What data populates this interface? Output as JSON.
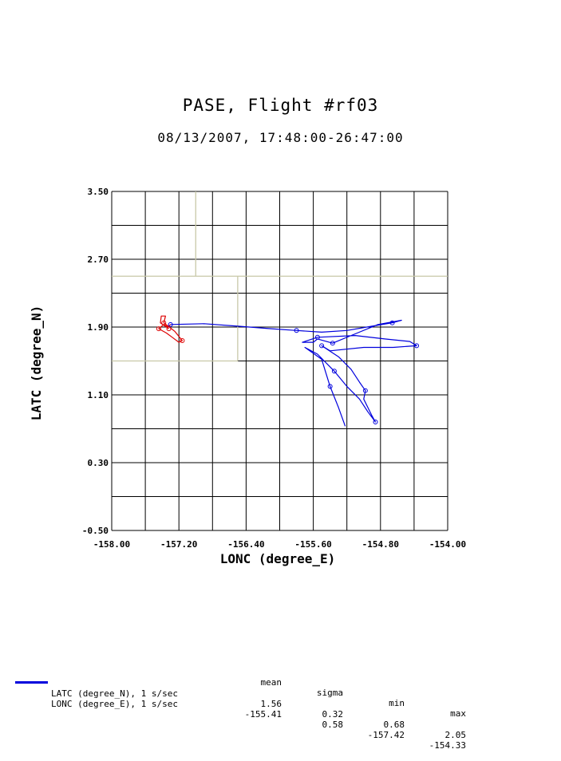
{
  "title": "PASE, Flight #rf03",
  "subtitle": "08/13/2007, 17:48:00-26:47:00",
  "colors": {
    "track": "#0000dd",
    "track_start": "#dd0000",
    "grid": "#000000",
    "map_lines": "#c8c8a8"
  },
  "chart_data": {
    "type": "line",
    "xlabel": "LONC (degree_E)",
    "ylabel": "LATC (degree_N)",
    "xlim": [
      -158.0,
      -154.0
    ],
    "ylim": [
      -0.5,
      3.5
    ],
    "xticks": [
      "-158.00",
      "-157.20",
      "-156.40",
      "-155.60",
      "-154.80",
      "-154.00"
    ],
    "yticks": [
      "-0.50",
      "0.30",
      "1.10",
      "1.90",
      "2.70",
      "3.50"
    ],
    "grid": true,
    "series": [
      {
        "name": "flight track",
        "segments": [
          {
            "color": "red",
            "points": [
              [
                -157.32,
                1.88
              ],
              [
                -157.42,
                1.95
              ],
              [
                -157.41,
                2.03
              ],
              [
                -157.36,
                2.03
              ],
              [
                -157.38,
                1.95
              ],
              [
                -157.3,
                1.89
              ],
              [
                -157.25,
                1.85
              ],
              [
                -157.2,
                1.79
              ],
              [
                -157.16,
                1.74
              ],
              [
                -157.2,
                1.72
              ],
              [
                -157.28,
                1.78
              ],
              [
                -157.35,
                1.83
              ],
              [
                -157.44,
                1.88
              ],
              [
                -157.38,
                1.93
              ],
              [
                -157.33,
                1.9
              ],
              [
                -157.3,
                1.93
              ]
            ]
          },
          {
            "color": "blue",
            "points": [
              [
                -157.3,
                1.93
              ],
              [
                -156.9,
                1.94
              ],
              [
                -156.5,
                1.91
              ],
              [
                -156.1,
                1.88
              ],
              [
                -155.8,
                1.86
              ],
              [
                -155.5,
                1.84
              ],
              [
                -155.2,
                1.86
              ],
              [
                -154.9,
                1.91
              ],
              [
                -154.66,
                1.95
              ],
              [
                -154.55,
                1.98
              ],
              [
                -154.83,
                1.93
              ],
              [
                -155.1,
                1.82
              ],
              [
                -155.37,
                1.71
              ],
              [
                -155.55,
                1.76
              ],
              [
                -155.6,
                1.72
              ],
              [
                -155.73,
                1.72
              ],
              [
                -155.55,
                1.78
              ],
              [
                -155.1,
                1.8
              ],
              [
                -154.75,
                1.76
              ],
              [
                -154.45,
                1.73
              ],
              [
                -154.37,
                1.68
              ],
              [
                -154.65,
                1.66
              ],
              [
                -155.0,
                1.66
              ],
              [
                -155.4,
                1.62
              ],
              [
                -155.5,
                1.68
              ],
              [
                -155.3,
                1.55
              ],
              [
                -155.15,
                1.4
              ],
              [
                -155.05,
                1.25
              ],
              [
                -154.98,
                1.15
              ],
              [
                -155.0,
                1.05
              ],
              [
                -154.95,
                0.95
              ],
              [
                -154.9,
                0.85
              ],
              [
                -154.86,
                0.78
              ],
              [
                -154.95,
                0.9
              ],
              [
                -155.05,
                1.05
              ],
              [
                -155.2,
                1.2
              ],
              [
                -155.35,
                1.38
              ],
              [
                -155.55,
                1.58
              ],
              [
                -155.7,
                1.66
              ],
              [
                -155.5,
                1.52
              ],
              [
                -155.4,
                1.2
              ],
              [
                -155.3,
                0.95
              ],
              [
                -155.22,
                0.73
              ]
            ]
          }
        ]
      }
    ],
    "map_lines": [
      [
        [
          -158.0,
          2.5
        ],
        [
          -154.0,
          2.5
        ]
      ],
      [
        [
          -158.0,
          1.5
        ],
        [
          -156.5,
          1.5
        ]
      ],
      [
        [
          -156.5,
          1.5
        ],
        [
          -156.5,
          2.5
        ]
      ],
      [
        [
          -157.0,
          2.5
        ],
        [
          -157.0,
          3.5
        ]
      ]
    ]
  },
  "stats": {
    "headers": [
      "mean",
      "sigma",
      "min",
      "max"
    ],
    "rows": [
      {
        "label": "LATC (degree_N), 1 s/sec",
        "values": [
          "1.56",
          "0.32",
          "0.68",
          "2.05"
        ],
        "legend_color": "#0000dd"
      },
      {
        "label": "LONC (degree_E), 1 s/sec",
        "values": [
          "-155.41",
          "0.58",
          "-157.42",
          "-154.33"
        ]
      }
    ]
  }
}
